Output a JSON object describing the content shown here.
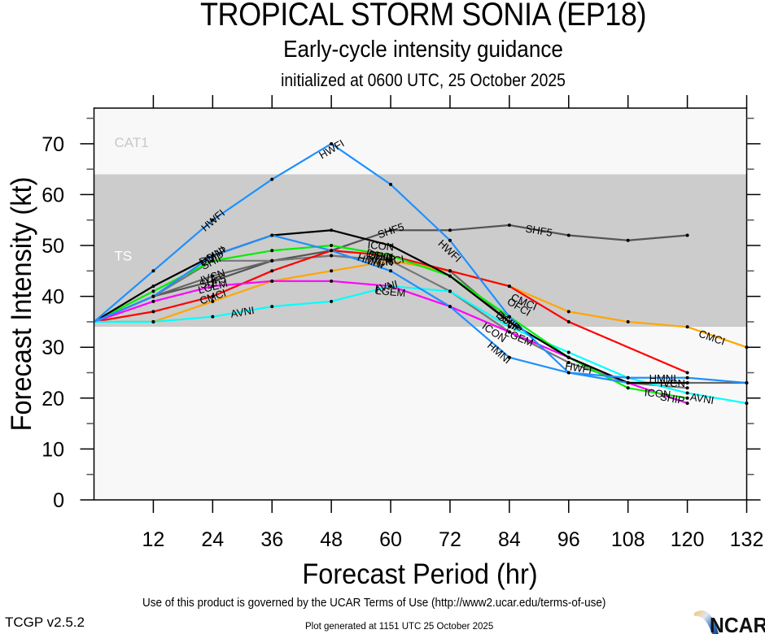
{
  "header": {
    "title": "TROPICAL STORM SONIA (EP18)",
    "subtitle": "Early-cycle intensity guidance",
    "init_line": "initialized at 0600 UTC, 25 October 2025"
  },
  "footer": {
    "terms": "Use of this product is governed by the UCAR Terms of Use (http://www2.ucar.edu/terms-of-use)",
    "version": "TCGP v2.5.2",
    "generated": "Plot generated at 1151 UTC   25 October 2025",
    "logo_text": "NCAR"
  },
  "chart_data": {
    "type": "line",
    "title": "TROPICAL STORM SONIA (EP18)",
    "xlabel": "Forecast Period (hr)",
    "ylabel": "Forecast Intensity (kt)",
    "xlim": [
      0,
      132
    ],
    "ylim": [
      0,
      77
    ],
    "x_ticks": [
      12,
      24,
      36,
      48,
      60,
      72,
      84,
      96,
      108,
      120,
      132
    ],
    "y_ticks": [
      0,
      10,
      20,
      30,
      40,
      50,
      60,
      70
    ],
    "grid": false,
    "bands": [
      {
        "label": "TS",
        "from": 34,
        "to": 64,
        "color": "#cccccc",
        "label_color": "#ffffff"
      },
      {
        "label": "CAT1",
        "from": 64,
        "to": 77,
        "color": "#f8f8f8",
        "label_color": "#c8c8c8"
      },
      {
        "label": "",
        "from": 0,
        "to": 34,
        "color": "#f8f8f8",
        "label_color": ""
      }
    ],
    "x": [
      0,
      12,
      24,
      36,
      48,
      60,
      72,
      84,
      96,
      108,
      120,
      132
    ],
    "series": [
      {
        "name": "SHF5",
        "color": "#555555",
        "values": [
          35,
          40,
          43,
          47,
          49,
          53,
          53,
          54,
          52,
          51,
          52,
          null
        ]
      },
      {
        "name": "IVCN",
        "color": "#666666",
        "values": [
          35,
          40,
          44,
          47,
          48,
          47,
          45,
          35,
          28,
          23,
          23,
          23
        ]
      },
      {
        "name": "ICON",
        "color": "#777777",
        "values": [
          35,
          40,
          47,
          47,
          48,
          47,
          41,
          33,
          27,
          23,
          22,
          null
        ]
      },
      {
        "name": "CMCI",
        "color": "#ffa500",
        "values": [
          35,
          35,
          39,
          43,
          45,
          47,
          45,
          42,
          37,
          35,
          34,
          30
        ]
      },
      {
        "name": "OFCI",
        "color": "#ff0000",
        "values": [
          35,
          37,
          40,
          45,
          49,
          48,
          45,
          42,
          35,
          null,
          25,
          null
        ]
      },
      {
        "name": "LGEM",
        "color": "#ff00ff",
        "values": [
          35,
          39,
          42,
          43,
          43,
          42,
          38,
          33,
          28,
          23,
          19,
          null
        ]
      },
      {
        "name": "AVNI",
        "color": "#00ffff",
        "values": [
          35,
          35,
          36,
          38,
          39,
          42,
          41,
          34,
          29,
          24,
          21,
          19
        ]
      },
      {
        "name": "SHIP",
        "color": "#00ee00",
        "values": [
          35,
          41,
          47,
          49,
          50,
          48,
          44,
          36,
          28,
          22,
          20,
          null
        ]
      },
      {
        "name": "DSHP",
        "color": "#000000",
        "values": [
          35,
          42,
          48,
          52,
          53,
          50,
          44,
          35,
          28,
          23,
          23,
          null
        ]
      },
      {
        "name": "HMNI",
        "color": "#1e90ff",
        "values": [
          35,
          40,
          48,
          52,
          49,
          45,
          38,
          28,
          25,
          24,
          24,
          23
        ]
      },
      {
        "name": "HWFI",
        "color": "#1e90ff",
        "values": [
          35,
          45,
          55,
          63,
          70,
          62,
          51,
          36,
          25,
          23,
          null,
          null
        ]
      }
    ],
    "labels": [
      {
        "series": "HWFI",
        "x": 24,
        "y": 55
      },
      {
        "series": "HWFI",
        "x": 48,
        "y": 69
      },
      {
        "series": "HWFI",
        "x": 72,
        "y": 49
      },
      {
        "series": "HWFI",
        "x": 98,
        "y": 26
      },
      {
        "series": "HMNI",
        "x": 24,
        "y": 48
      },
      {
        "series": "HMNI",
        "x": 56,
        "y": 47
      },
      {
        "series": "HMNI",
        "x": 82,
        "y": 29
      },
      {
        "series": "HMNI",
        "x": 115,
        "y": 24
      },
      {
        "series": "DSHP",
        "x": 24,
        "y": 48
      },
      {
        "series": "DSHP",
        "x": 58,
        "y": 48
      },
      {
        "series": "SHIP",
        "x": 24,
        "y": 47
      },
      {
        "series": "SHIP",
        "x": 58,
        "y": 48
      },
      {
        "series": "SHIP",
        "x": 84,
        "y": 35
      },
      {
        "series": "SHIP",
        "x": 117,
        "y": 20
      },
      {
        "series": "IVCN",
        "x": 24,
        "y": 44
      },
      {
        "series": "IVCN",
        "x": 58,
        "y": 47
      },
      {
        "series": "IVCN",
        "x": 117,
        "y": 23
      },
      {
        "series": "SHF5",
        "x": 24,
        "y": 43
      },
      {
        "series": "SHF5",
        "x": 60,
        "y": 53
      },
      {
        "series": "SHF5",
        "x": 90,
        "y": 53
      },
      {
        "series": "ICON",
        "x": 58,
        "y": 50
      },
      {
        "series": "ICON",
        "x": 81,
        "y": 33
      },
      {
        "series": "ICON",
        "x": 114,
        "y": 21
      },
      {
        "series": "LGEM",
        "x": 24,
        "y": 42
      },
      {
        "series": "LGEM",
        "x": 60,
        "y": 41
      },
      {
        "series": "LGEM",
        "x": 86,
        "y": 32
      },
      {
        "series": "CMCI",
        "x": 24,
        "y": 40
      },
      {
        "series": "CMCI",
        "x": 60,
        "y": 47
      },
      {
        "series": "CMCI",
        "x": 87,
        "y": 39
      },
      {
        "series": "CMCI",
        "x": 125,
        "y": 32
      },
      {
        "series": "OFCI",
        "x": 58,
        "y": 48
      },
      {
        "series": "OFCI",
        "x": 86,
        "y": 38
      },
      {
        "series": "AVNI",
        "x": 30,
        "y": 37
      },
      {
        "series": "AVNI",
        "x": 59,
        "y": 42
      },
      {
        "series": "AVNI",
        "x": 123,
        "y": 20
      },
      {
        "series": "DSHP",
        "x": 84,
        "y": 35
      }
    ]
  }
}
